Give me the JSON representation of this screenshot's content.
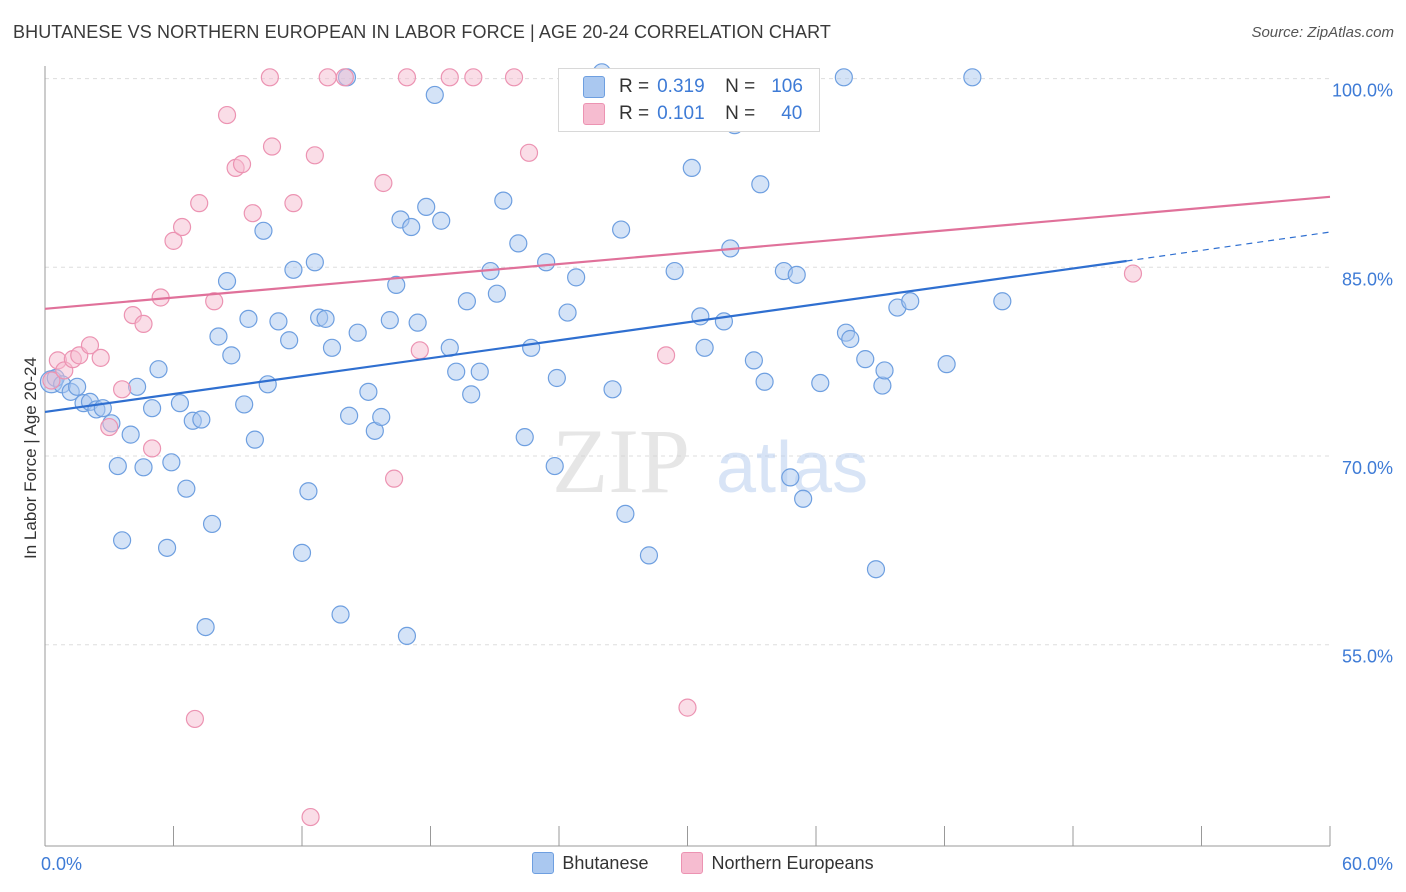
{
  "title": "BHUTANESE VS NORTHERN EUROPEAN IN LABOR FORCE | AGE 20-24 CORRELATION CHART",
  "source": "Source: ZipAtlas.com",
  "watermark": {
    "zip": "ZIP",
    "atlas": "atlas"
  },
  "colors": {
    "blue_fill": "#aac8f0",
    "blue_stroke": "#6e9fe0",
    "blue_line": "#2f6fd0",
    "pink_fill": "#f6bcd0",
    "pink_stroke": "#ec93b2",
    "pink_line": "#e0719a",
    "axis_text": "#3e7bd6",
    "grid": "#dddddd"
  },
  "stats": [
    {
      "r_label": "R =",
      "r_value": "0.319",
      "n_label": "N =",
      "n_value": "106",
      "color": "#aac8f0"
    },
    {
      "r_label": "R =",
      "r_value": "0.101",
      "n_label": "N =",
      "n_value": "40",
      "color": "#f6bcd0"
    }
  ],
  "legend": [
    {
      "label": "Bhutanese",
      "color": "#aac8f0"
    },
    {
      "label": "Northern Europeans",
      "color": "#f6bcd0"
    }
  ],
  "chart_data": {
    "type": "scatter",
    "title": "BHUTANESE VS NORTHERN EUROPEAN IN LABOR FORCE | AGE 20-24 CORRELATION CHART",
    "xlabel": "",
    "ylabel": "In Labor Force | Age 20-24",
    "xlim": [
      0,
      60
    ],
    "ylim": [
      39,
      101
    ],
    "x_tick_labels": [
      {
        "value": 0,
        "label": "0.0%"
      },
      {
        "value": 60,
        "label": "60.0%"
      }
    ],
    "y_tick_labels": [
      {
        "value": 100,
        "label": "100.0%"
      },
      {
        "value": 85,
        "label": "85.0%"
      },
      {
        "value": 70,
        "label": "70.0%"
      },
      {
        "value": 55,
        "label": "55.0%"
      }
    ],
    "series": [
      {
        "name": "Bhutanese",
        "trend": {
          "x0": 0,
          "y0": 73.5,
          "x1": 50.5,
          "y1": 85.5,
          "dash_to_x": 60,
          "dash_to_y": 87.8
        },
        "points": [
          [
            0.3,
            75.9
          ],
          [
            0.5,
            76.2
          ],
          [
            0.8,
            75.7
          ],
          [
            1.2,
            75.1
          ],
          [
            1.5,
            75.5
          ],
          [
            1.8,
            74.2
          ],
          [
            2.1,
            74.3
          ],
          [
            2.4,
            73.7
          ],
          [
            2.7,
            73.8
          ],
          [
            3.1,
            72.6
          ],
          [
            3.4,
            69.2
          ],
          [
            3.6,
            63.3
          ],
          [
            4.0,
            71.7
          ],
          [
            4.3,
            75.5
          ],
          [
            4.6,
            69.1
          ],
          [
            5.0,
            73.8
          ],
          [
            5.3,
            76.9
          ],
          [
            5.7,
            62.7
          ],
          [
            5.9,
            69.5
          ],
          [
            6.3,
            74.2
          ],
          [
            6.6,
            67.4
          ],
          [
            6.9,
            72.8
          ],
          [
            7.3,
            72.9
          ],
          [
            7.5,
            56.4
          ],
          [
            7.8,
            64.6
          ],
          [
            8.1,
            79.5
          ],
          [
            8.5,
            83.9
          ],
          [
            8.7,
            78.0
          ],
          [
            9.3,
            74.1
          ],
          [
            9.5,
            80.9
          ],
          [
            9.8,
            71.3
          ],
          [
            10.2,
            87.9
          ],
          [
            10.4,
            75.7
          ],
          [
            10.9,
            80.7
          ],
          [
            11.4,
            79.2
          ],
          [
            11.6,
            84.8
          ],
          [
            12.0,
            62.3
          ],
          [
            12.3,
            67.2
          ],
          [
            12.6,
            85.4
          ],
          [
            12.8,
            81.0
          ],
          [
            13.1,
            80.9
          ],
          [
            13.4,
            78.6
          ],
          [
            13.8,
            57.4
          ],
          [
            14.2,
            73.2
          ],
          [
            14.6,
            79.8
          ],
          [
            15.1,
            75.1
          ],
          [
            15.4,
            72.0
          ],
          [
            15.7,
            73.1
          ],
          [
            16.1,
            80.8
          ],
          [
            16.4,
            83.6
          ],
          [
            16.6,
            88.8
          ],
          [
            16.9,
            55.7
          ],
          [
            17.1,
            88.2
          ],
          [
            17.4,
            80.6
          ],
          [
            17.8,
            89.8
          ],
          [
            18.5,
            88.7
          ],
          [
            18.9,
            78.6
          ],
          [
            19.2,
            76.7
          ],
          [
            19.7,
            82.3
          ],
          [
            19.9,
            74.9
          ],
          [
            20.3,
            76.7
          ],
          [
            20.8,
            84.7
          ],
          [
            21.1,
            82.9
          ],
          [
            21.4,
            90.3
          ],
          [
            22.1,
            86.9
          ],
          [
            22.4,
            71.5
          ],
          [
            22.7,
            78.6
          ],
          [
            23.4,
            85.4
          ],
          [
            23.8,
            69.2
          ],
          [
            23.9,
            76.2
          ],
          [
            24.4,
            81.4
          ],
          [
            24.8,
            84.2
          ],
          [
            25.2,
            100.1
          ],
          [
            26.0,
            100.5
          ],
          [
            26.5,
            75.3
          ],
          [
            26.9,
            88.0
          ],
          [
            27.1,
            65.4
          ],
          [
            28.2,
            62.1
          ],
          [
            29.4,
            84.7
          ],
          [
            30.2,
            92.9
          ],
          [
            30.6,
            81.1
          ],
          [
            30.8,
            78.6
          ],
          [
            31.7,
            80.7
          ],
          [
            32.0,
            86.5
          ],
          [
            32.2,
            96.3
          ],
          [
            33.1,
            77.6
          ],
          [
            33.4,
            91.6
          ],
          [
            33.6,
            75.9
          ],
          [
            34.5,
            84.7
          ],
          [
            34.8,
            68.3
          ],
          [
            35.1,
            84.4
          ],
          [
            35.4,
            66.6
          ],
          [
            36.2,
            75.8
          ],
          [
            37.4,
            79.8
          ],
          [
            37.6,
            79.3
          ],
          [
            38.3,
            77.7
          ],
          [
            38.8,
            61.0
          ],
          [
            39.1,
            75.6
          ],
          [
            39.2,
            76.8
          ],
          [
            39.8,
            81.8
          ],
          [
            40.4,
            82.3
          ],
          [
            42.1,
            77.3
          ],
          [
            44.7,
            82.3
          ],
          [
            14.1,
            100.1
          ],
          [
            18.2,
            98.7
          ],
          [
            37.3,
            100.1
          ],
          [
            43.3,
            100.1
          ]
        ]
      },
      {
        "name": "Northern Europeans",
        "trend": {
          "x0": 0,
          "y0": 81.7,
          "x1": 60,
          "y1": 90.6
        },
        "points": [
          [
            0.3,
            76.0
          ],
          [
            0.6,
            77.6
          ],
          [
            0.9,
            76.8
          ],
          [
            1.3,
            77.7
          ],
          [
            1.6,
            78.0
          ],
          [
            2.1,
            78.8
          ],
          [
            2.6,
            77.8
          ],
          [
            3.0,
            72.3
          ],
          [
            3.6,
            75.3
          ],
          [
            4.1,
            81.2
          ],
          [
            4.6,
            80.5
          ],
          [
            5.0,
            70.6
          ],
          [
            5.4,
            82.6
          ],
          [
            6.0,
            87.1
          ],
          [
            6.4,
            88.2
          ],
          [
            7.2,
            90.1
          ],
          [
            7.9,
            82.3
          ],
          [
            8.5,
            97.1
          ],
          [
            8.9,
            92.9
          ],
          [
            9.2,
            93.2
          ],
          [
            9.7,
            89.3
          ],
          [
            10.5,
            100.1
          ],
          [
            10.6,
            94.6
          ],
          [
            11.6,
            90.1
          ],
          [
            12.6,
            93.9
          ],
          [
            13.2,
            100.1
          ],
          [
            14.0,
            100.1
          ],
          [
            15.8,
            91.7
          ],
          [
            16.3,
            68.2
          ],
          [
            16.9,
            100.1
          ],
          [
            17.5,
            78.4
          ],
          [
            18.9,
            100.1
          ],
          [
            20.0,
            100.1
          ],
          [
            21.9,
            100.1
          ],
          [
            22.6,
            94.1
          ],
          [
            29.0,
            78.0
          ],
          [
            30.0,
            50.0
          ],
          [
            7.0,
            49.1
          ],
          [
            12.4,
            41.3
          ],
          [
            50.8,
            84.5
          ]
        ]
      }
    ]
  }
}
